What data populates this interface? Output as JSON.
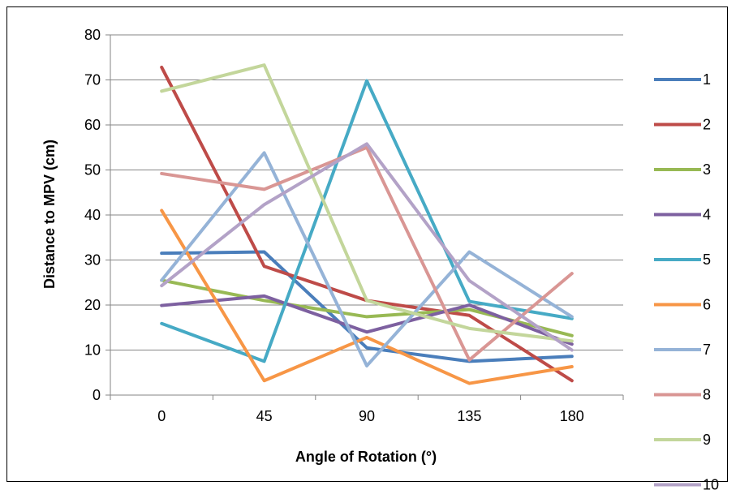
{
  "chart_data": {
    "type": "line",
    "xlabel": "Angle of  Rotation (°)",
    "ylabel": "Distance to MPV (cm)",
    "ylim": [
      0,
      80
    ],
    "yticks": [
      0,
      10,
      20,
      30,
      40,
      50,
      60,
      70,
      80
    ],
    "categories": [
      "0",
      "45",
      "90",
      "135",
      "180"
    ],
    "grid": true,
    "legend_position": "right",
    "series": [
      {
        "name": "1",
        "color": "#4A7EBB",
        "values": [
          31.5,
          31.8,
          10.5,
          7.5,
          8.6
        ]
      },
      {
        "name": "2",
        "color": "#BE4B48",
        "values": [
          72.8,
          28.6,
          21.0,
          17.7,
          3.2
        ]
      },
      {
        "name": "3",
        "color": "#98B954",
        "values": [
          25.5,
          21.0,
          17.4,
          19.0,
          13.2
        ]
      },
      {
        "name": "4",
        "color": "#7D60A0",
        "values": [
          19.9,
          22.0,
          14.0,
          20.0,
          11.3
        ]
      },
      {
        "name": "5",
        "color": "#46AAC5",
        "values": [
          15.9,
          7.5,
          69.8,
          20.8,
          17.0
        ]
      },
      {
        "name": "6",
        "color": "#F79646",
        "values": [
          41.0,
          3.2,
          12.8,
          2.6,
          6.3
        ]
      },
      {
        "name": "7",
        "color": "#95B3D7",
        "values": [
          25.5,
          53.8,
          6.5,
          31.8,
          17.4
        ]
      },
      {
        "name": "8",
        "color": "#D99694",
        "values": [
          49.2,
          45.7,
          55.0,
          7.8,
          27.0
        ]
      },
      {
        "name": "9",
        "color": "#C3D69B",
        "values": [
          67.5,
          73.3,
          21.0,
          14.8,
          12.0
        ]
      },
      {
        "name": "10",
        "color": "#B3A2C7",
        "values": [
          24.3,
          42.3,
          55.8,
          25.4,
          10.0
        ]
      }
    ]
  }
}
